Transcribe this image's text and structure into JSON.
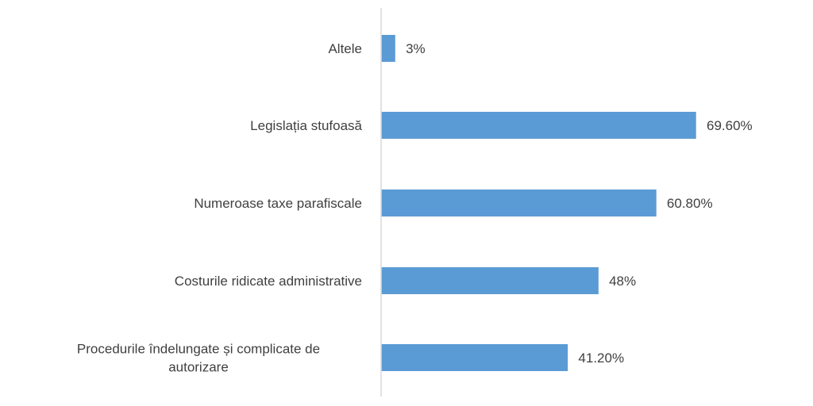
{
  "chart_data": {
    "type": "bar",
    "orientation": "horizontal",
    "categories": [
      "Altele",
      "Legislația stufoasă",
      "Numeroase taxe parafiscale",
      "Costurile ridicate administrative",
      "Procedurile îndelungate și complicate de autorizare"
    ],
    "category_label_lines": [
      [
        "Altele"
      ],
      [
        "Legislația stufoasă"
      ],
      [
        "Numeroase taxe parafiscale"
      ],
      [
        "Costurile ridicate administrative"
      ],
      [
        "Procedurile îndelungate și complicate de",
        "autorizare"
      ]
    ],
    "values": [
      3,
      69.6,
      60.8,
      48,
      41.2
    ],
    "value_labels": [
      "3%",
      "69.60%",
      "60.80%",
      "48%",
      "41.20%"
    ],
    "unit": "%",
    "xlim": [
      0,
      100
    ],
    "grid": false,
    "legend": "none",
    "bar_color": "#5b9bd5",
    "axis_color": "#d9d9d9",
    "text_color": "#404040"
  }
}
